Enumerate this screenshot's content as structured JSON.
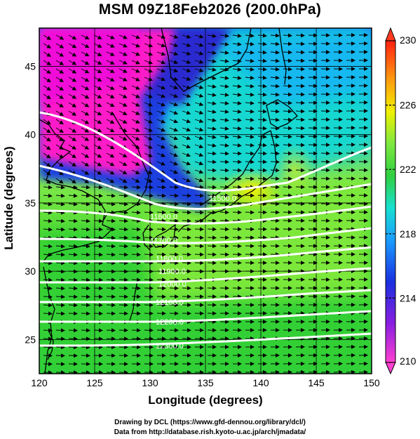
{
  "title": "MSM 09Z18Feb2026 (200.0hPa)",
  "xlabel": "Longitude (degrees)",
  "ylabel": "Latitude  (degrees)",
  "credits": [
    "Drawing by DCL (https://www.gfd-dennou.org/library/dcl/)",
    "Data from http://database.rish.kyoto-u.ac.jp/arch/jmadata/"
  ],
  "map": {
    "lon_range": [
      120,
      150
    ],
    "lat_range": [
      22.5,
      47.8
    ],
    "lon_ticks": [
      120,
      125,
      130,
      135,
      140,
      145,
      150
    ],
    "lat_ticks": [
      25,
      30,
      35,
      40,
      45
    ],
    "grid": true
  },
  "colorbar": {
    "min": 210,
    "max": 230,
    "tick_labels": [
      "230",
      "226",
      "222",
      "218",
      "214",
      "210"
    ],
    "tick_values": [
      230,
      226,
      222,
      218,
      214,
      210
    ]
  },
  "contours": [
    {
      "label": "11500.0",
      "value": 11500
    },
    {
      "label": "11600.0",
      "value": 11600
    },
    {
      "label": "11700.0",
      "value": 11700
    },
    {
      "label": "11800.0",
      "value": 11800
    },
    {
      "label": "11900.0",
      "value": 11900
    },
    {
      "label": "12000.0",
      "value": 12000
    },
    {
      "label": "12100.0",
      "value": 12100
    },
    {
      "label": "12200.0",
      "value": 12200
    },
    {
      "label": "12300.0",
      "value": 12300
    }
  ]
}
